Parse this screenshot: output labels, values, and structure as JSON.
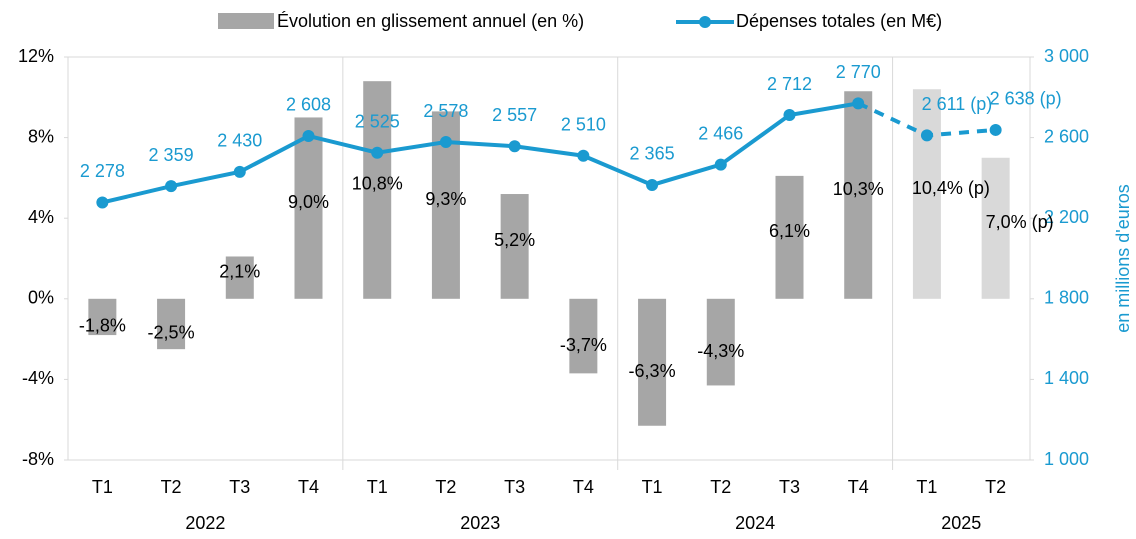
{
  "chart_data": {
    "type": "bar-line",
    "categories": [
      "T1",
      "T2",
      "T3",
      "T4",
      "T1",
      "T2",
      "T3",
      "T4",
      "T1",
      "T2",
      "T3",
      "T4",
      "T1",
      "T2"
    ],
    "groups": [
      {
        "label": "2022",
        "count": 4
      },
      {
        "label": "2023",
        "count": 4
      },
      {
        "label": "2024",
        "count": 4
      },
      {
        "label": "2025",
        "count": 2
      }
    ],
    "provisional": [
      false,
      false,
      false,
      false,
      false,
      false,
      false,
      false,
      false,
      false,
      false,
      false,
      true,
      true
    ],
    "series": [
      {
        "name": "Évolution en glissement annuel (en %)",
        "type": "bar",
        "color": "#a6a6a6",
        "provisional_color": "#d9d9d9",
        "values": [
          -1.8,
          -2.5,
          2.1,
          9.0,
          10.8,
          9.3,
          5.2,
          -3.7,
          -6.3,
          -4.3,
          6.1,
          10.3,
          10.4,
          7.0
        ],
        "value_labels": [
          "-1,8%",
          "-2,5%",
          "2,1%",
          "9,0%",
          "10,8%",
          "9,3%",
          "5,2%",
          "-3,7%",
          "-6,3%",
          "-4,3%",
          "6,1%",
          "10,3%",
          "10,4% (p)",
          "7,0% (p)"
        ]
      },
      {
        "name": "Dépenses totales (en M€)",
        "type": "line",
        "axis": "y2",
        "color": "#1a9ad0",
        "values": [
          2278,
          2359,
          2430,
          2608,
          2525,
          2578,
          2557,
          2510,
          2365,
          2466,
          2712,
          2770,
          2611,
          2638
        ],
        "value_labels": [
          "2 278",
          "2 359",
          "2 430",
          "2 608",
          "2 525",
          "2 578",
          "2 557",
          "2 510",
          "2 365",
          "2 466",
          "2 712",
          "2 770",
          "2 611 (p)",
          "2 638 (p)"
        ]
      }
    ],
    "ylim": [
      -8,
      12
    ],
    "yticks": [
      {
        "value": -8,
        "label": "-8%"
      },
      {
        "value": -4,
        "label": "-4%"
      },
      {
        "value": 0,
        "label": "0%"
      },
      {
        "value": 4,
        "label": "4%"
      },
      {
        "value": 8,
        "label": "8%"
      },
      {
        "value": 12,
        "label": "12%"
      }
    ],
    "y2lim": [
      1000,
      3000
    ],
    "y2ticks": [
      {
        "value": 1000,
        "label": "1 000"
      },
      {
        "value": 1400,
        "label": "1 400"
      },
      {
        "value": 1800,
        "label": "1 800"
      },
      {
        "value": 2200,
        "label": "2 200"
      },
      {
        "value": 2600,
        "label": "2 600"
      },
      {
        "value": 3000,
        "label": "3 000"
      }
    ],
    "y2_label": "en millions d'euros",
    "legend": "top"
  }
}
